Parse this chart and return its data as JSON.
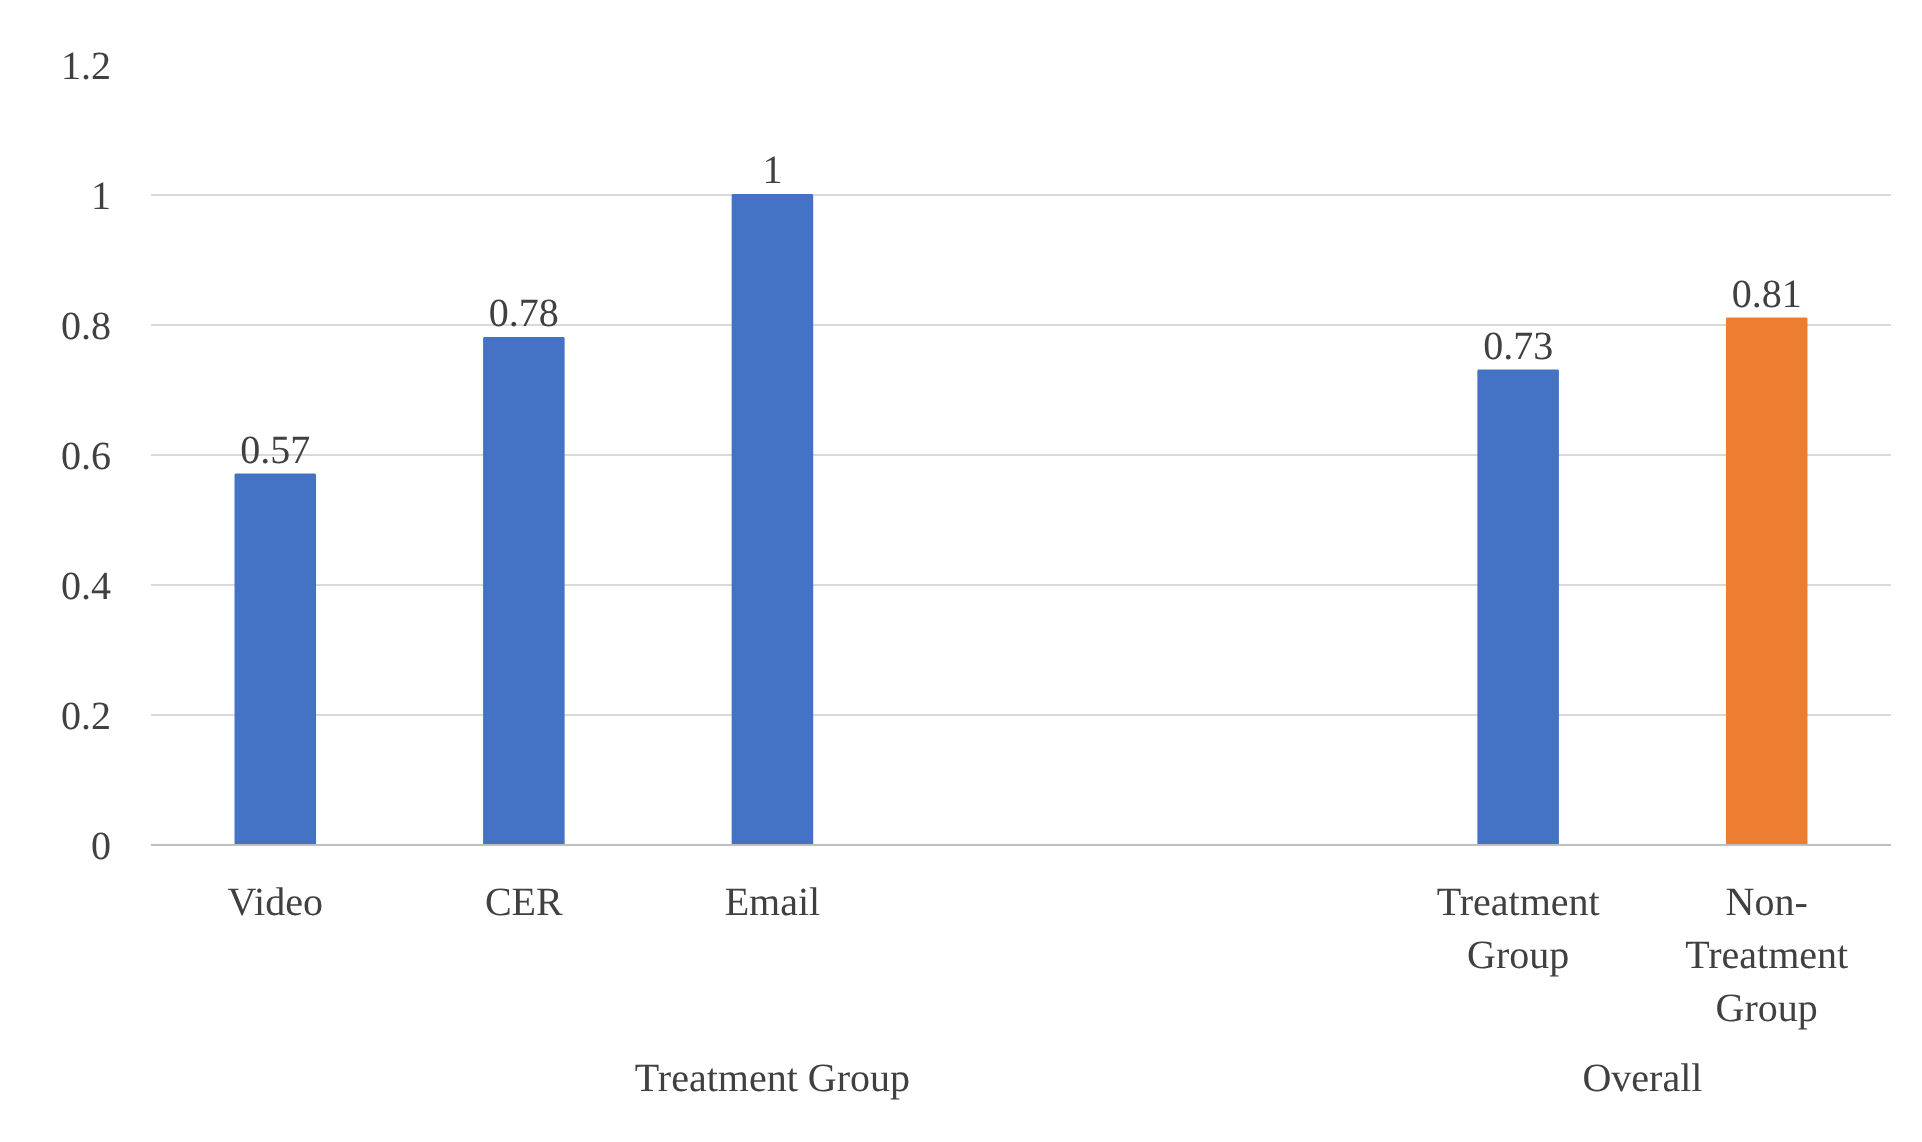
{
  "chart_data": {
    "type": "bar",
    "categories": [
      "Video",
      "CER",
      "Email",
      null,
      null,
      "Treatment Group",
      "Non-Treatment Group"
    ],
    "values": [
      0.57,
      0.78,
      1,
      null,
      null,
      0.73,
      0.81
    ],
    "colors": [
      "#4472c4",
      "#4472c4",
      "#4472c4",
      "#4472c4",
      "#4472c4",
      "#4472c4",
      "#ed7d31"
    ],
    "ylim": [
      0,
      1.2
    ],
    "yticks": [
      0,
      0.2,
      0.4,
      0.6,
      0.8,
      1,
      1.2
    ],
    "grid": "y",
    "data_labels": true,
    "annotations": [
      "Treatment Group",
      "Overall"
    ]
  }
}
